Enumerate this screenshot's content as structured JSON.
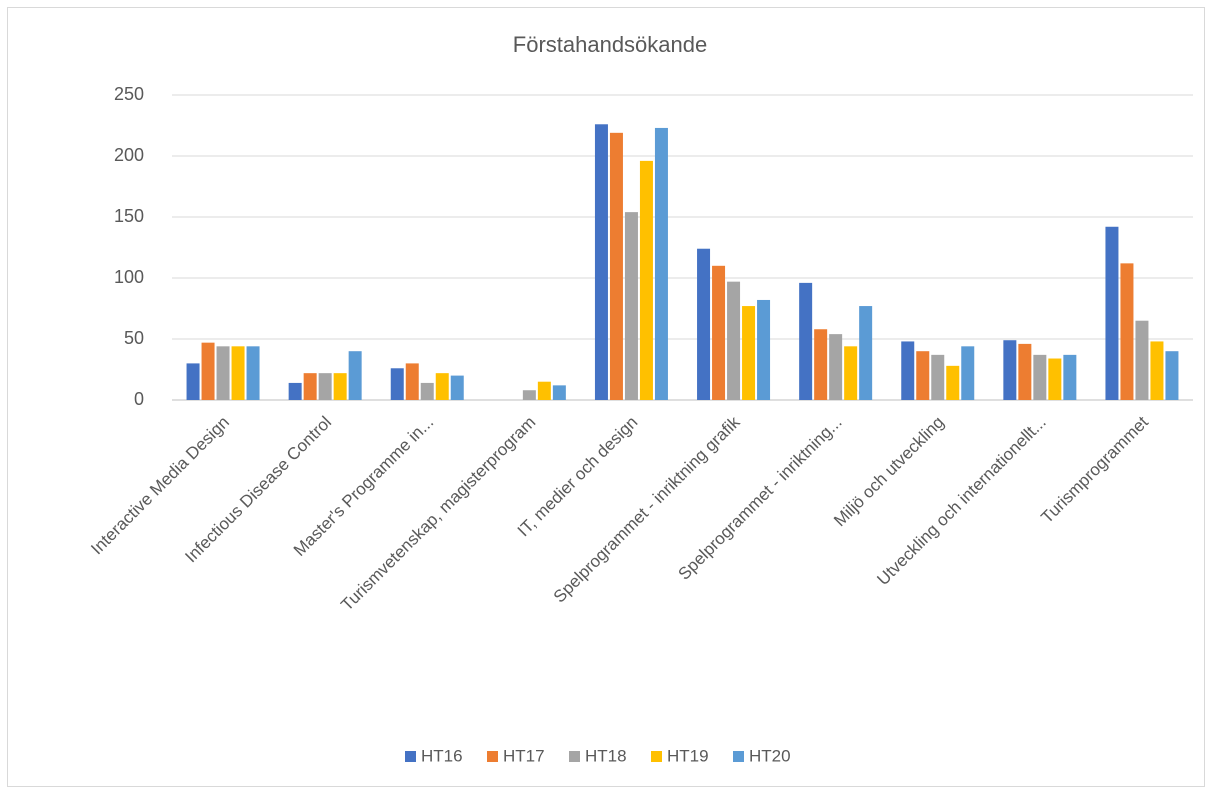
{
  "chart_data": {
    "type": "bar",
    "title": "Förstahandsökande",
    "categories": [
      "Interactive Media Design",
      "Infectious Disease Control",
      "Master's Programme in...",
      "Turismvetenskap, magisterprogram",
      "IT, medier och design",
      "Spelprogrammet - inriktning grafik",
      "Spelprogrammet - inriktning...",
      "Miljö och utveckling",
      "Utveckling och internationellt...",
      "Turismprogrammet"
    ],
    "series": [
      {
        "name": "HT16",
        "color": "#4472c4",
        "values": [
          30,
          14,
          26,
          null,
          226,
          124,
          96,
          48,
          49,
          142
        ]
      },
      {
        "name": "HT17",
        "color": "#ed7d31",
        "values": [
          47,
          22,
          30,
          null,
          219,
          110,
          58,
          40,
          46,
          112
        ]
      },
      {
        "name": "HT18",
        "color": "#a5a5a5",
        "values": [
          44,
          22,
          14,
          8,
          154,
          97,
          54,
          37,
          37,
          65
        ]
      },
      {
        "name": "HT19",
        "color": "#ffc000",
        "values": [
          44,
          22,
          22,
          15,
          196,
          77,
          44,
          28,
          34,
          48
        ]
      },
      {
        "name": "HT20",
        "color": "#5b9bd5",
        "values": [
          44,
          40,
          20,
          12,
          223,
          82,
          77,
          44,
          37,
          40
        ]
      }
    ],
    "ylim": [
      0,
      250
    ],
    "yticks": [
      0,
      50,
      100,
      150,
      200,
      250
    ],
    "grid": true,
    "legend": "bottom"
  }
}
